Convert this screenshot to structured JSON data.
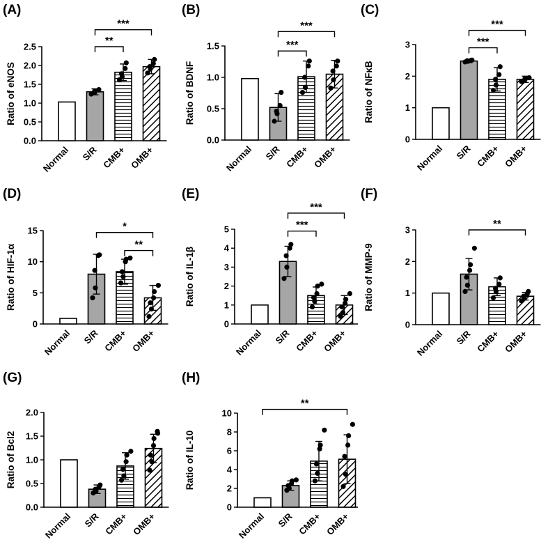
{
  "colors": {
    "gray_fill": "#a6a6a6",
    "white_fill": "#ffffff",
    "ink": "#000000"
  },
  "chart_data": [
    {
      "type": "bar",
      "panel_label": "(A)",
      "ylabel": "Ratio of eNOS",
      "categories": [
        "Normal",
        "S/R",
        "CMB+",
        "OMB+"
      ],
      "values": [
        1.03,
        1.3,
        1.82,
        1.97
      ],
      "errors": [
        0,
        0.08,
        0.22,
        0.19
      ],
      "points": [
        [],
        [
          1.24,
          1.28,
          1.32,
          1.36
        ],
        [
          1.62,
          1.7,
          1.78,
          1.92,
          2.07
        ],
        [
          1.8,
          1.91,
          1.97,
          2.05,
          2.16
        ]
      ],
      "ylim": [
        0,
        2.5
      ],
      "yticks": [
        "0.0",
        "0.5",
        "1.0",
        "1.5",
        "2.0",
        "2.5"
      ],
      "significance": [
        {
          "from": 1,
          "to": 2,
          "label": "**",
          "value": 2.5
        },
        {
          "from": 1,
          "to": 3,
          "label": "***",
          "value": 2.95
        }
      ]
    },
    {
      "type": "bar",
      "panel_label": "(B)",
      "ylabel": "Ratio of BDNF",
      "categories": [
        "Normal",
        "S/R",
        "CMB+",
        "OMB+"
      ],
      "values": [
        0.98,
        0.52,
        1.01,
        1.05
      ],
      "errors": [
        0,
        0.22,
        0.25,
        0.22
      ],
      "points": [
        [],
        [
          0.3,
          0.42,
          0.46,
          0.55,
          0.76
        ],
        [
          0.76,
          0.84,
          1.0,
          1.18,
          1.26
        ],
        [
          0.83,
          0.96,
          1.1,
          1.18,
          1.26
        ]
      ],
      "ylim": [
        0,
        1.5
      ],
      "yticks": [
        "0.0",
        "0.5",
        "1.0",
        "1.5"
      ],
      "significance": [
        {
          "from": 1,
          "to": 2,
          "label": "***",
          "value": 1.42
        },
        {
          "from": 1,
          "to": 3,
          "label": "***",
          "value": 1.73
        }
      ]
    },
    {
      "type": "bar",
      "panel_label": "(C)",
      "ylabel": "Ratio of NFκB",
      "categories": [
        "Normal",
        "S/R",
        "CMB+",
        "OMB+"
      ],
      "values": [
        1.0,
        2.48,
        1.9,
        1.9
      ],
      "errors": [
        0,
        0.05,
        0.37,
        0.1
      ],
      "points": [
        [],
        [
          2.45,
          2.47,
          2.49,
          2.5,
          2.51
        ],
        [
          1.55,
          1.72,
          1.9,
          2.05,
          2.3
        ],
        [
          1.83,
          1.88,
          1.92,
          1.95
        ]
      ],
      "ylim": [
        0,
        3
      ],
      "yticks": [
        "0",
        "1",
        "2",
        "3"
      ],
      "significance": [
        {
          "from": 1,
          "to": 2,
          "label": "***",
          "value": 2.9
        },
        {
          "from": 1,
          "to": 3,
          "label": "***",
          "value": 3.45
        }
      ]
    },
    {
      "type": "bar",
      "panel_label": "(D)",
      "ylabel": "Ratio of HIF-1α",
      "categories": [
        "Normal",
        "S/R",
        "CMB+",
        "OMB+"
      ],
      "values": [
        0.9,
        8.0,
        8.4,
        4.2
      ],
      "errors": [
        0,
        3.2,
        2.0,
        2.0
      ],
      "points": [
        [],
        [
          4.2,
          5.8,
          8.6,
          11.0,
          11.1
        ],
        [
          6.6,
          7.6,
          8.4,
          10.0,
          10.4,
          10.6
        ],
        [
          1.2,
          2.4,
          3.4,
          4.2,
          5.2,
          6.2
        ]
      ],
      "ylim": [
        0,
        15
      ],
      "yticks": [
        "0",
        "5",
        "10",
        "15"
      ],
      "significance": [
        {
          "from": 2,
          "to": 3,
          "label": "**",
          "value": 11.8
        },
        {
          "from": 1,
          "to": 3,
          "label": "*",
          "value": 14.7
        }
      ]
    },
    {
      "type": "bar",
      "panel_label": "(E)",
      "ylabel": "Ratio of IL-1β",
      "categories": [
        "Normal",
        "S/R",
        "CMB+",
        "OMB+"
      ],
      "values": [
        1.0,
        3.3,
        1.5,
        1.0
      ],
      "errors": [
        0,
        0.8,
        0.45,
        0.5
      ],
      "points": [
        [],
        [
          2.4,
          3.0,
          3.6,
          4.0,
          4.2
        ],
        [
          0.9,
          1.2,
          1.4,
          1.6,
          2.0,
          2.1
        ],
        [
          0.4,
          0.6,
          0.9,
          1.1,
          1.3,
          1.6
        ]
      ],
      "ylim": [
        0,
        5
      ],
      "yticks": [
        "0",
        "1",
        "2",
        "3",
        "4",
        "5"
      ],
      "significance": [
        {
          "from": 1,
          "to": 2,
          "label": "***",
          "value": 4.9
        },
        {
          "from": 1,
          "to": 3,
          "label": "***",
          "value": 5.85
        }
      ]
    },
    {
      "type": "bar",
      "panel_label": "(F)",
      "ylabel": "Ratio of MMP-9",
      "categories": [
        "Normal",
        "S/R",
        "CMB+",
        "OMB+"
      ],
      "values": [
        1.0,
        1.6,
        1.2,
        0.9
      ],
      "errors": [
        0,
        0.5,
        0.28,
        0.12
      ],
      "points": [
        [],
        [
          1.05,
          1.25,
          1.5,
          1.72,
          1.9,
          2.42
        ],
        [
          0.85,
          1.05,
          1.15,
          1.28,
          1.48
        ],
        [
          0.75,
          0.85,
          0.9,
          0.98,
          1.05
        ]
      ],
      "ylim": [
        0,
        3
      ],
      "yticks": [
        "0",
        "1",
        "2",
        "3"
      ],
      "significance": [
        {
          "from": 1,
          "to": 3,
          "label": "**",
          "value": 3.0
        }
      ]
    },
    {
      "type": "bar",
      "panel_label": "(G)",
      "ylabel": "Ratio of Bcl2",
      "categories": [
        "Normal",
        "S/R",
        "CMB+",
        "OMB+"
      ],
      "values": [
        1.0,
        0.38,
        0.87,
        1.24
      ],
      "errors": [
        0,
        0.09,
        0.28,
        0.3
      ],
      "points": [
        [],
        [
          0.3,
          0.34,
          0.38,
          0.43,
          0.47
        ],
        [
          0.57,
          0.66,
          0.8,
          0.96,
          1.1,
          1.18
        ],
        [
          0.78,
          0.96,
          1.1,
          1.3,
          1.45,
          1.56,
          1.6
        ]
      ],
      "ylim": [
        0,
        2.0
      ],
      "yticks": [
        "0.0",
        "0.5",
        "1.0",
        "1.5",
        "2.0"
      ],
      "significance": []
    },
    {
      "type": "bar",
      "panel_label": "(H)",
      "ylabel": "Ratio of IL-10",
      "categories": [
        "Normal",
        "S/R",
        "CMB+",
        "OMB+"
      ],
      "values": [
        1.0,
        2.3,
        4.9,
        5.1
      ],
      "errors": [
        0,
        0.5,
        2.1,
        2.6
      ],
      "points": [
        [],
        [
          1.8,
          2.0,
          2.3,
          2.5,
          2.8,
          2.9
        ],
        [
          2.8,
          3.6,
          4.6,
          6.2,
          6.6,
          8.2
        ],
        [
          2.2,
          3.5,
          5.4,
          6.6,
          7.6,
          8.8
        ]
      ],
      "ylim": [
        0,
        10
      ],
      "yticks": [
        "0",
        "2",
        "4",
        "6",
        "8",
        "10"
      ],
      "significance": [
        {
          "from": 0,
          "to": 3,
          "label": "**",
          "value": 10.4
        }
      ]
    }
  ]
}
